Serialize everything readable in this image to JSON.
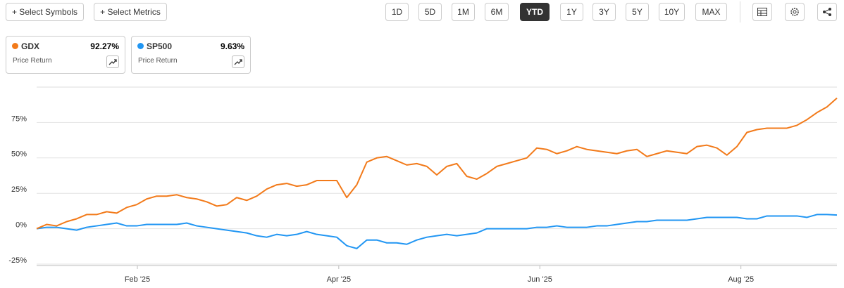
{
  "toolbar": {
    "buttons": [
      "+ Select Symbols",
      "+ Select Metrics"
    ],
    "periods": [
      "1D",
      "5D",
      "1M",
      "6M",
      "YTD",
      "1Y",
      "3Y",
      "5Y",
      "10Y",
      "MAX"
    ],
    "selected_period": "YTD"
  },
  "chart_data": {
    "type": "line",
    "xlim": [
      0,
      80
    ],
    "xticks": [
      {
        "value": 10.07,
        "label": "Feb '25"
      },
      {
        "value": 30.2,
        "label": "Apr '25"
      },
      {
        "value": 50.3,
        "label": "Jun '25"
      },
      {
        "value": 70.4,
        "label": "Aug '25"
      }
    ],
    "ylim": [
      -26,
      100
    ],
    "yticks": [
      {
        "value": -25,
        "label": "-25%"
      },
      {
        "value": 0,
        "label": "0%"
      },
      {
        "value": 25,
        "label": "25%"
      },
      {
        "value": 50,
        "label": "50%"
      },
      {
        "value": 75,
        "label": "75%"
      }
    ],
    "grid": true,
    "series": [
      {
        "name": "GDX",
        "color": "#f27a1a",
        "change": "92.27%",
        "metric": "Price Return",
        "values": [
          0,
          3,
          2,
          5,
          7,
          10,
          10,
          12,
          11,
          15,
          17,
          21,
          23,
          23,
          24,
          22,
          21,
          19,
          16,
          17,
          22,
          20,
          23,
          28,
          31,
          32,
          30,
          31,
          34,
          34,
          34,
          22,
          31,
          47,
          50,
          51,
          48,
          45,
          46,
          44,
          38,
          44,
          46,
          37,
          35,
          39,
          44,
          46,
          48,
          50,
          57,
          56,
          53,
          55,
          58,
          56,
          55,
          54,
          53,
          55,
          56,
          51,
          53,
          55,
          54,
          53,
          58,
          59,
          57,
          52,
          58,
          68,
          70,
          71,
          71,
          71,
          73,
          77,
          82,
          86,
          92.27
        ]
      },
      {
        "name": "SP500",
        "color": "#2196f3",
        "change": "9.63%",
        "metric": "Price Return",
        "values": [
          0,
          1,
          1,
          0,
          -1,
          1,
          2,
          3,
          4,
          2,
          2,
          3,
          3,
          3,
          3,
          4,
          2,
          1,
          0,
          -1,
          -2,
          -3,
          -5,
          -6,
          -4,
          -5,
          -4,
          -2,
          -4,
          -5,
          -6,
          -12,
          -14,
          -8,
          -8,
          -10,
          -10,
          -11,
          -8,
          -6,
          -5,
          -4,
          -5,
          -4,
          -3,
          0,
          0,
          0,
          0,
          0,
          1,
          1,
          2,
          1,
          1,
          1,
          2,
          2,
          3,
          4,
          5,
          5,
          6,
          6,
          6,
          6,
          7,
          8,
          8,
          8,
          8,
          7,
          7,
          9,
          9,
          9,
          9,
          8,
          10,
          10,
          9.63
        ]
      }
    ]
  }
}
